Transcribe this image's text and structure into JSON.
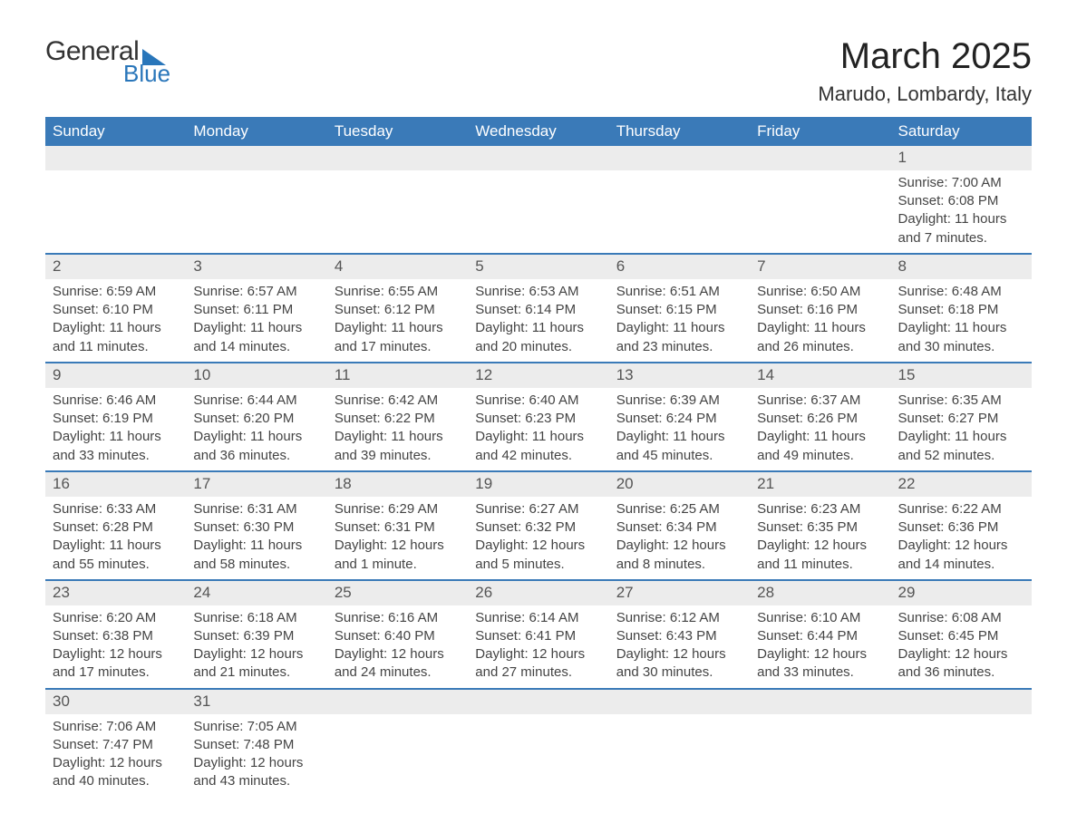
{
  "logo": {
    "word1": "General",
    "word2": "Blue"
  },
  "title": "March 2025",
  "location": "Marudo, Lombardy, Italy",
  "colors": {
    "header_bg": "#3a7ab8",
    "header_text": "#ffffff",
    "daynum_bg": "#ececec",
    "row_border": "#3a7ab8",
    "logo_accent": "#2976ba",
    "body_text": "#333333"
  },
  "columns": [
    "Sunday",
    "Monday",
    "Tuesday",
    "Wednesday",
    "Thursday",
    "Friday",
    "Saturday"
  ],
  "weeks": [
    {
      "days": [
        null,
        null,
        null,
        null,
        null,
        null,
        {
          "n": "1",
          "sunrise": "Sunrise: 7:00 AM",
          "sunset": "Sunset: 6:08 PM",
          "daylight": "Daylight: 11 hours and 7 minutes."
        }
      ]
    },
    {
      "days": [
        {
          "n": "2",
          "sunrise": "Sunrise: 6:59 AM",
          "sunset": "Sunset: 6:10 PM",
          "daylight": "Daylight: 11 hours and 11 minutes."
        },
        {
          "n": "3",
          "sunrise": "Sunrise: 6:57 AM",
          "sunset": "Sunset: 6:11 PM",
          "daylight": "Daylight: 11 hours and 14 minutes."
        },
        {
          "n": "4",
          "sunrise": "Sunrise: 6:55 AM",
          "sunset": "Sunset: 6:12 PM",
          "daylight": "Daylight: 11 hours and 17 minutes."
        },
        {
          "n": "5",
          "sunrise": "Sunrise: 6:53 AM",
          "sunset": "Sunset: 6:14 PM",
          "daylight": "Daylight: 11 hours and 20 minutes."
        },
        {
          "n": "6",
          "sunrise": "Sunrise: 6:51 AM",
          "sunset": "Sunset: 6:15 PM",
          "daylight": "Daylight: 11 hours and 23 minutes."
        },
        {
          "n": "7",
          "sunrise": "Sunrise: 6:50 AM",
          "sunset": "Sunset: 6:16 PM",
          "daylight": "Daylight: 11 hours and 26 minutes."
        },
        {
          "n": "8",
          "sunrise": "Sunrise: 6:48 AM",
          "sunset": "Sunset: 6:18 PM",
          "daylight": "Daylight: 11 hours and 30 minutes."
        }
      ]
    },
    {
      "days": [
        {
          "n": "9",
          "sunrise": "Sunrise: 6:46 AM",
          "sunset": "Sunset: 6:19 PM",
          "daylight": "Daylight: 11 hours and 33 minutes."
        },
        {
          "n": "10",
          "sunrise": "Sunrise: 6:44 AM",
          "sunset": "Sunset: 6:20 PM",
          "daylight": "Daylight: 11 hours and 36 minutes."
        },
        {
          "n": "11",
          "sunrise": "Sunrise: 6:42 AM",
          "sunset": "Sunset: 6:22 PM",
          "daylight": "Daylight: 11 hours and 39 minutes."
        },
        {
          "n": "12",
          "sunrise": "Sunrise: 6:40 AM",
          "sunset": "Sunset: 6:23 PM",
          "daylight": "Daylight: 11 hours and 42 minutes."
        },
        {
          "n": "13",
          "sunrise": "Sunrise: 6:39 AM",
          "sunset": "Sunset: 6:24 PM",
          "daylight": "Daylight: 11 hours and 45 minutes."
        },
        {
          "n": "14",
          "sunrise": "Sunrise: 6:37 AM",
          "sunset": "Sunset: 6:26 PM",
          "daylight": "Daylight: 11 hours and 49 minutes."
        },
        {
          "n": "15",
          "sunrise": "Sunrise: 6:35 AM",
          "sunset": "Sunset: 6:27 PM",
          "daylight": "Daylight: 11 hours and 52 minutes."
        }
      ]
    },
    {
      "days": [
        {
          "n": "16",
          "sunrise": "Sunrise: 6:33 AM",
          "sunset": "Sunset: 6:28 PM",
          "daylight": "Daylight: 11 hours and 55 minutes."
        },
        {
          "n": "17",
          "sunrise": "Sunrise: 6:31 AM",
          "sunset": "Sunset: 6:30 PM",
          "daylight": "Daylight: 11 hours and 58 minutes."
        },
        {
          "n": "18",
          "sunrise": "Sunrise: 6:29 AM",
          "sunset": "Sunset: 6:31 PM",
          "daylight": "Daylight: 12 hours and 1 minute."
        },
        {
          "n": "19",
          "sunrise": "Sunrise: 6:27 AM",
          "sunset": "Sunset: 6:32 PM",
          "daylight": "Daylight: 12 hours and 5 minutes."
        },
        {
          "n": "20",
          "sunrise": "Sunrise: 6:25 AM",
          "sunset": "Sunset: 6:34 PM",
          "daylight": "Daylight: 12 hours and 8 minutes."
        },
        {
          "n": "21",
          "sunrise": "Sunrise: 6:23 AM",
          "sunset": "Sunset: 6:35 PM",
          "daylight": "Daylight: 12 hours and 11 minutes."
        },
        {
          "n": "22",
          "sunrise": "Sunrise: 6:22 AM",
          "sunset": "Sunset: 6:36 PM",
          "daylight": "Daylight: 12 hours and 14 minutes."
        }
      ]
    },
    {
      "days": [
        {
          "n": "23",
          "sunrise": "Sunrise: 6:20 AM",
          "sunset": "Sunset: 6:38 PM",
          "daylight": "Daylight: 12 hours and 17 minutes."
        },
        {
          "n": "24",
          "sunrise": "Sunrise: 6:18 AM",
          "sunset": "Sunset: 6:39 PM",
          "daylight": "Daylight: 12 hours and 21 minutes."
        },
        {
          "n": "25",
          "sunrise": "Sunrise: 6:16 AM",
          "sunset": "Sunset: 6:40 PM",
          "daylight": "Daylight: 12 hours and 24 minutes."
        },
        {
          "n": "26",
          "sunrise": "Sunrise: 6:14 AM",
          "sunset": "Sunset: 6:41 PM",
          "daylight": "Daylight: 12 hours and 27 minutes."
        },
        {
          "n": "27",
          "sunrise": "Sunrise: 6:12 AM",
          "sunset": "Sunset: 6:43 PM",
          "daylight": "Daylight: 12 hours and 30 minutes."
        },
        {
          "n": "28",
          "sunrise": "Sunrise: 6:10 AM",
          "sunset": "Sunset: 6:44 PM",
          "daylight": "Daylight: 12 hours and 33 minutes."
        },
        {
          "n": "29",
          "sunrise": "Sunrise: 6:08 AM",
          "sunset": "Sunset: 6:45 PM",
          "daylight": "Daylight: 12 hours and 36 minutes."
        }
      ]
    },
    {
      "days": [
        {
          "n": "30",
          "sunrise": "Sunrise: 7:06 AM",
          "sunset": "Sunset: 7:47 PM",
          "daylight": "Daylight: 12 hours and 40 minutes."
        },
        {
          "n": "31",
          "sunrise": "Sunrise: 7:05 AM",
          "sunset": "Sunset: 7:48 PM",
          "daylight": "Daylight: 12 hours and 43 minutes."
        },
        null,
        null,
        null,
        null,
        null
      ]
    }
  ]
}
